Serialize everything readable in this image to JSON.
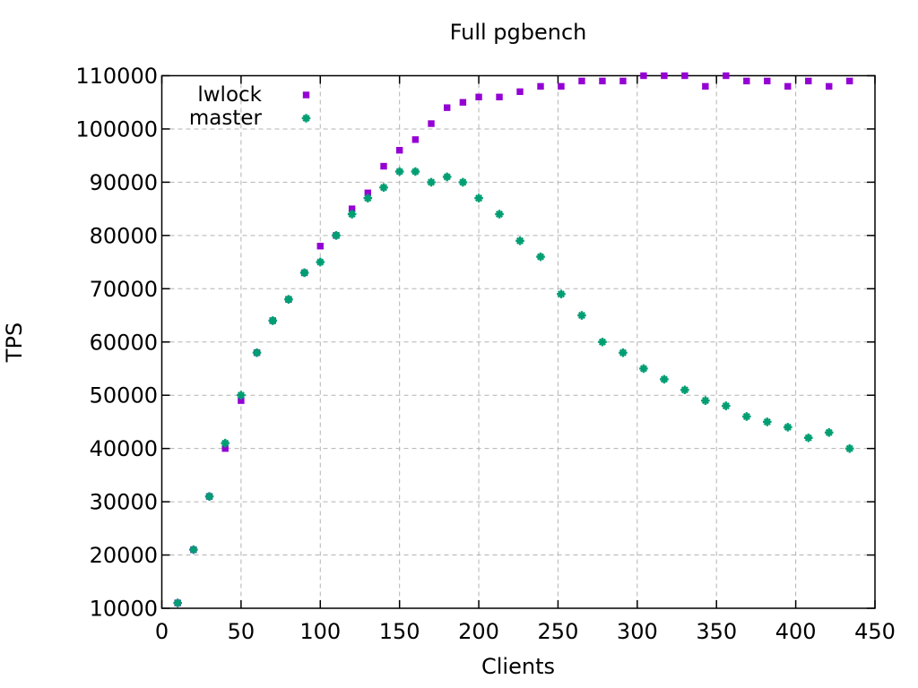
{
  "chart_data": {
    "type": "scatter",
    "title": "Full pgbench",
    "xlabel": "Clients",
    "ylabel": "TPS",
    "xlim": [
      0,
      450
    ],
    "ylim": [
      10000,
      110000
    ],
    "x_ticks": [
      0,
      50,
      100,
      150,
      200,
      250,
      300,
      350,
      400,
      450
    ],
    "y_ticks": [
      10000,
      20000,
      30000,
      40000,
      50000,
      60000,
      70000,
      80000,
      90000,
      100000,
      110000
    ],
    "grid": true,
    "grid_color": "#b3b3b3",
    "legend": {
      "position": "inside-top-left",
      "entries": [
        "lwlock",
        "master"
      ]
    },
    "series": [
      {
        "name": "lwlock",
        "color": "#9400d3",
        "marker": "filled-square",
        "x": [
          10,
          20,
          30,
          40,
          50,
          60,
          70,
          80,
          90,
          100,
          110,
          120,
          130,
          140,
          150,
          160,
          170,
          180,
          190,
          200,
          213,
          226,
          239,
          252,
          265,
          278,
          291,
          304,
          317,
          330,
          343,
          356,
          369,
          382,
          395,
          408,
          421,
          434
        ],
        "y": [
          11000,
          21000,
          31000,
          40000,
          49000,
          58000,
          64000,
          68000,
          73000,
          78000,
          80000,
          85000,
          88000,
          93000,
          96000,
          98000,
          101000,
          104000,
          105000,
          106000,
          106000,
          107000,
          108000,
          108000,
          109000,
          109000,
          109000,
          110000,
          110000,
          110000,
          108000,
          110000,
          109000,
          109000,
          108000,
          109000,
          108000,
          109000
        ]
      },
      {
        "name": "master",
        "color": "#009e73",
        "marker": "star",
        "x": [
          10,
          20,
          30,
          40,
          50,
          60,
          70,
          80,
          90,
          100,
          110,
          120,
          130,
          140,
          150,
          160,
          170,
          180,
          190,
          200,
          213,
          226,
          239,
          252,
          265,
          278,
          291,
          304,
          317,
          330,
          343,
          356,
          369,
          382,
          395,
          408,
          421,
          434
        ],
        "y": [
          11000,
          21000,
          31000,
          41000,
          50000,
          58000,
          64000,
          68000,
          73000,
          75000,
          80000,
          84000,
          87000,
          89000,
          92000,
          92000,
          90000,
          91000,
          90000,
          87000,
          84000,
          79000,
          76000,
          69000,
          65000,
          60000,
          58000,
          55000,
          53000,
          51000,
          49000,
          48000,
          46000,
          45000,
          44000,
          42000,
          43000,
          40000
        ]
      }
    ]
  }
}
